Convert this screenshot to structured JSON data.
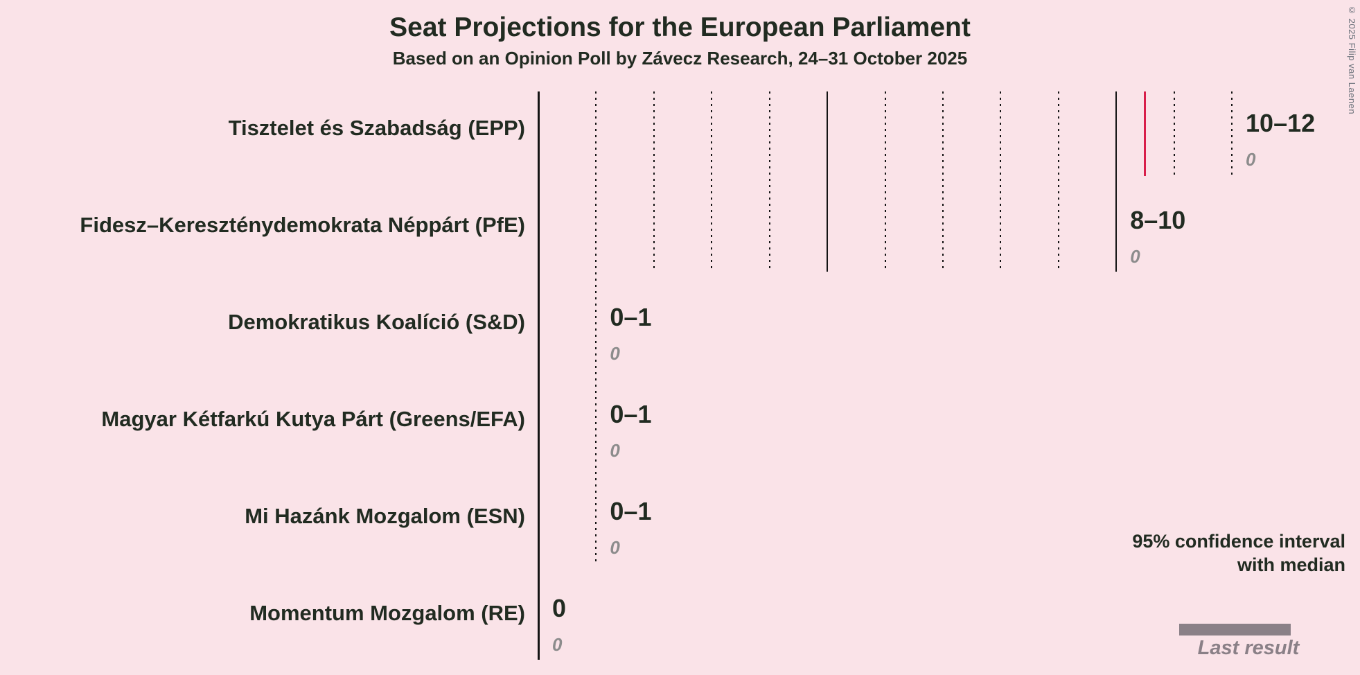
{
  "title": "Seat Projections for the European Parliament",
  "subtitle": "Based on an Opinion Poll by Závecz Research, 24–31 October 2025",
  "copyright": "© 2025 Filip van Laenen",
  "legend": {
    "line1": "95% confidence interval",
    "line2": "with median",
    "last_result_label": "Last result",
    "swatch_color": "#132010",
    "last_result_color": "#8a8087",
    "swatch_segments": [
      {
        "style": "solid",
        "frac": 0.494
      },
      {
        "style": "cross",
        "frac": 0.328
      },
      {
        "style": "diag",
        "frac": 0.178
      }
    ]
  },
  "colors": {
    "background": "#fae3e8",
    "text": "#212b21",
    "grid": "#141414",
    "median_line": "#d81e4a",
    "muted": "#8c8c8c"
  },
  "chart_data": {
    "type": "bar",
    "orientation": "horizontal",
    "title": "Seat Projections for the European Parliament",
    "subtitle": "Based on an Opinion Poll by Závecz Research, 24–31 October 2025",
    "x_axis": {
      "min": 0,
      "max": 12,
      "tick_interval": 1,
      "solid_every": 5,
      "tick_labels_visible": false
    },
    "parties": [
      {
        "label": "Tisztelet és Szabadság (EPP)",
        "color": "#3799f3",
        "ci_label": "10–12",
        "ci_low": 10,
        "ci_high": 12,
        "median": 10.5,
        "last_result": "0",
        "segments": [
          {
            "style": "solid",
            "from": 0,
            "to": 10
          },
          {
            "style": "cross",
            "from": 10,
            "to": 11
          },
          {
            "style": "diag",
            "from": 11,
            "to": 12
          }
        ]
      },
      {
        "label": "Fidesz–Kereszténydemokrata Néppárt (PfE)",
        "color": "#161616",
        "ci_label": "8–10",
        "ci_low": 8,
        "ci_high": 10,
        "median": null,
        "last_result": "0",
        "segments": [
          {
            "style": "solid",
            "from": 0,
            "to": 8
          },
          {
            "style": "cross",
            "from": 8,
            "to": 9
          },
          {
            "style": "diag",
            "from": 9,
            "to": 10
          }
        ]
      },
      {
        "label": "Demokratikus Koalíció (S&D)",
        "color": "#f11212",
        "ci_label": "0–1",
        "ci_low": 0,
        "ci_high": 1,
        "median": null,
        "last_result": "0",
        "segments": [
          {
            "style": "cross",
            "from": 0,
            "to": 1
          }
        ]
      },
      {
        "label": "Magyar Kétfarkú Kutya Párt (Greens/EFA)",
        "color": "#0aa00a",
        "ci_label": "0–1",
        "ci_low": 0,
        "ci_high": 1,
        "median": null,
        "last_result": "0",
        "segments": [
          {
            "style": "diag",
            "from": 0,
            "to": 1
          }
        ]
      },
      {
        "label": "Mi Hazánk Mozgalom (ESN)",
        "color": "#78493a",
        "ci_label": "0–1",
        "ci_low": 0,
        "ci_high": 1,
        "median": null,
        "last_result": "0",
        "segments": [
          {
            "style": "cross",
            "from": 0,
            "to": 1
          }
        ]
      },
      {
        "label": "Momentum Mozgalom (RE)",
        "color": null,
        "ci_label": "0",
        "ci_low": 0,
        "ci_high": 0,
        "median": null,
        "last_result": "0",
        "segments": []
      }
    ]
  }
}
